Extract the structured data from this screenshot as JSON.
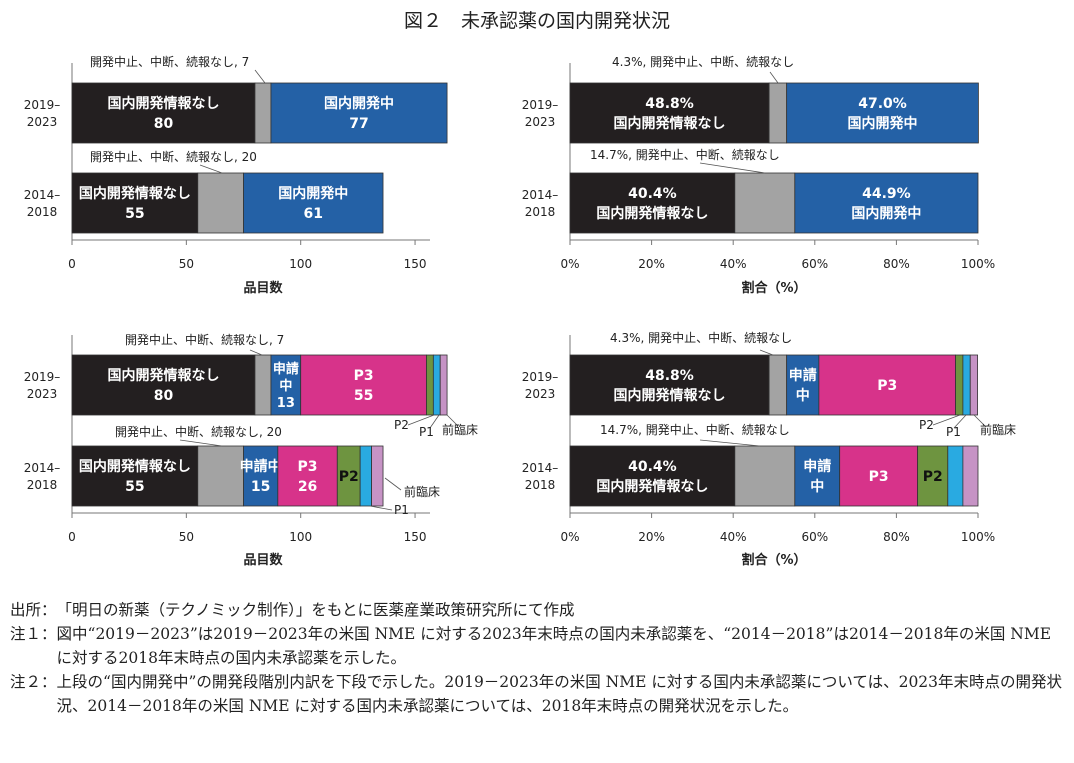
{
  "title": "図２　未承認薬の国内開発状況",
  "colors": {
    "国内開発情報なし": "#231f20",
    "開発中止、中断、続報なし": "#a3a3a3",
    "国内開発中": "#2461a6",
    "申請中": "#2461a6",
    "P3": "#d7338a",
    "P2": "#6e9440",
    "P1": "#29aae1",
    "前臨床": "#c693c5"
  },
  "chart_data": [
    {
      "type": "bar",
      "orientation": "horizontal",
      "stacked": true,
      "xlabel": "品目数",
      "xlim": [
        0,
        160
      ],
      "xticks": [
        "0",
        "50",
        "100",
        "150"
      ],
      "xtick_values": [
        0,
        50,
        100,
        150
      ],
      "categories": [
        "2019–\n2023",
        "2014–\n2018"
      ],
      "bars": [
        {
          "segments": [
            {
              "name": "国内開発情報なし",
              "value": 80,
              "label": [
                "国内開発情報なし",
                "80"
              ]
            },
            {
              "name": "開発中止、中断、続報なし",
              "value": 7,
              "label": []
            },
            {
              "name": "国内開発中",
              "value": 77,
              "label": [
                "国内開発中",
                "77"
              ]
            }
          ]
        },
        {
          "segments": [
            {
              "name": "国内開発情報なし",
              "value": 55,
              "label": [
                "国内開発情報なし",
                "55"
              ]
            },
            {
              "name": "開発中止、中断、続報なし",
              "value": 20,
              "label": []
            },
            {
              "name": "国内開発中",
              "value": 61,
              "label": [
                "国内開発中",
                "61"
              ]
            }
          ]
        }
      ],
      "annotations": [
        "開発中止、中断、続報なし, 7",
        "開発中止、中断、続報なし, 20"
      ]
    },
    {
      "type": "bar",
      "orientation": "horizontal",
      "stacked": true,
      "xlabel": "割合（%）",
      "xlim": [
        0,
        100
      ],
      "xticks": [
        "0%",
        "20%",
        "40%",
        "60%",
        "80%",
        "100%"
      ],
      "xtick_values": [
        0,
        20,
        40,
        60,
        80,
        100
      ],
      "categories": [
        "2019–\n2023",
        "2014–\n2018"
      ],
      "bars": [
        {
          "segments": [
            {
              "name": "国内開発情報なし",
              "value": 48.8,
              "label": [
                "48.8%",
                "国内開発情報なし"
              ]
            },
            {
              "name": "開発中止、中断、続報なし",
              "value": 4.3,
              "label": []
            },
            {
              "name": "国内開発中",
              "value": 47.0,
              "label": [
                "47.0%",
                "国内開発中"
              ]
            }
          ]
        },
        {
          "segments": [
            {
              "name": "国内開発情報なし",
              "value": 40.4,
              "label": [
                "40.4%",
                "国内開発情報なし"
              ]
            },
            {
              "name": "開発中止、中断、続報なし",
              "value": 14.7,
              "label": []
            },
            {
              "name": "国内開発中",
              "value": 44.9,
              "label": [
                "44.9%",
                "国内開発中"
              ]
            }
          ]
        }
      ],
      "annotations": [
        "4.3%, 開発中止、中断、続報なし",
        "14.7%, 開発中止、中断、続報なし"
      ]
    },
    {
      "type": "bar",
      "orientation": "horizontal",
      "stacked": true,
      "xlabel": "品目数",
      "xlim": [
        0,
        160
      ],
      "xticks": [
        "0",
        "50",
        "100",
        "150"
      ],
      "xtick_values": [
        0,
        50,
        100,
        150
      ],
      "categories": [
        "2019–\n2023",
        "2014–\n2018"
      ],
      "bars": [
        {
          "segments": [
            {
              "name": "国内開発情報なし",
              "value": 80,
              "label": [
                "国内開発情報なし",
                "80"
              ]
            },
            {
              "name": "開発中止、中断、続報なし",
              "value": 7,
              "label": []
            },
            {
              "name": "申請中",
              "value": 13,
              "label": [
                "申請",
                "中",
                "13"
              ]
            },
            {
              "name": "P3",
              "value": 55,
              "label": [
                "P3",
                "55"
              ]
            },
            {
              "name": "P2",
              "value": 3,
              "label": []
            },
            {
              "name": "P1",
              "value": 3,
              "label": []
            },
            {
              "name": "前臨床",
              "value": 3,
              "label": []
            }
          ]
        },
        {
          "segments": [
            {
              "name": "国内開発情報なし",
              "value": 55,
              "label": [
                "国内開発情報なし",
                "55"
              ]
            },
            {
              "name": "開発中止、中断、続報なし",
              "value": 20,
              "label": []
            },
            {
              "name": "申請中",
              "value": 15,
              "label": [
                "申請中",
                "15"
              ]
            },
            {
              "name": "P3",
              "value": 26,
              "label": [
                "P3",
                "26"
              ]
            },
            {
              "name": "P2",
              "value": 10,
              "label": [
                "P2"
              ]
            },
            {
              "name": "P1",
              "value": 5,
              "label": []
            },
            {
              "name": "前臨床",
              "value": 5,
              "label": []
            }
          ]
        }
      ],
      "annotations": [
        "開発中止、中断、続報なし, 7",
        "開発中止、中断、続報なし, 20",
        "P2",
        "P1",
        "前臨床",
        "前臨床",
        "P1"
      ]
    },
    {
      "type": "bar",
      "orientation": "horizontal",
      "stacked": true,
      "xlabel": "割合（%）",
      "xlim": [
        0,
        100
      ],
      "xticks": [
        "0%",
        "20%",
        "40%",
        "60%",
        "80%",
        "100%"
      ],
      "xtick_values": [
        0,
        20,
        40,
        60,
        80,
        100
      ],
      "categories": [
        "2019–\n2023",
        "2014–\n2018"
      ],
      "bars": [
        {
          "segments": [
            {
              "name": "国内開発情報なし",
              "value": 48.8,
              "label": [
                "48.8%",
                "国内開発情報なし"
              ]
            },
            {
              "name": "開発中止、中断、続報なし",
              "value": 4.3,
              "label": []
            },
            {
              "name": "申請中",
              "value": 7.9,
              "label": [
                "申請",
                "中"
              ]
            },
            {
              "name": "P3",
              "value": 33.5,
              "label": [
                "P3"
              ]
            },
            {
              "name": "P2",
              "value": 1.8,
              "label": []
            },
            {
              "name": "P1",
              "value": 1.8,
              "label": []
            },
            {
              "name": "前臨床",
              "value": 1.8,
              "label": []
            }
          ]
        },
        {
          "segments": [
            {
              "name": "国内開発情報なし",
              "value": 40.4,
              "label": [
                "40.4%",
                "国内開発情報なし"
              ]
            },
            {
              "name": "開発中止、中断、続報なし",
              "value": 14.7,
              "label": []
            },
            {
              "name": "申請中",
              "value": 11.0,
              "label": [
                "申請",
                "中"
              ]
            },
            {
              "name": "P3",
              "value": 19.1,
              "label": [
                "P3"
              ]
            },
            {
              "name": "P2",
              "value": 7.4,
              "label": [
                "P2"
              ]
            },
            {
              "name": "P1",
              "value": 3.7,
              "label": []
            },
            {
              "name": "前臨床",
              "value": 3.7,
              "label": []
            }
          ]
        }
      ],
      "annotations": [
        "4.3%, 開発中止、中断、続報なし",
        "14.7%, 開発中止、中断、続報なし",
        "P2",
        "P1",
        "前臨床"
      ]
    }
  ],
  "notes": [
    {
      "label": "出所：",
      "text": "「明日の新薬（テクノミック制作）」をもとに医薬産業政策研究所にて作成"
    },
    {
      "label": "注１：",
      "text": "図中“2019－2023”は2019－2023年の米国 NME に対する2023年末時点の国内未承認薬を、“2014－2018”は2014－2018年の米国 NME に対する2018年末時点の国内未承認薬を示した。"
    },
    {
      "label": "注２：",
      "text": "上段の“国内開発中”の開発段階別内訳を下段で示した。2019－2023年の米国 NME に対する国内未承認薬については、2023年末時点の開発状況、2014－2018年の米国 NME に対する国内未承認薬については、2018年末時点の開発状況を示した。"
    }
  ]
}
